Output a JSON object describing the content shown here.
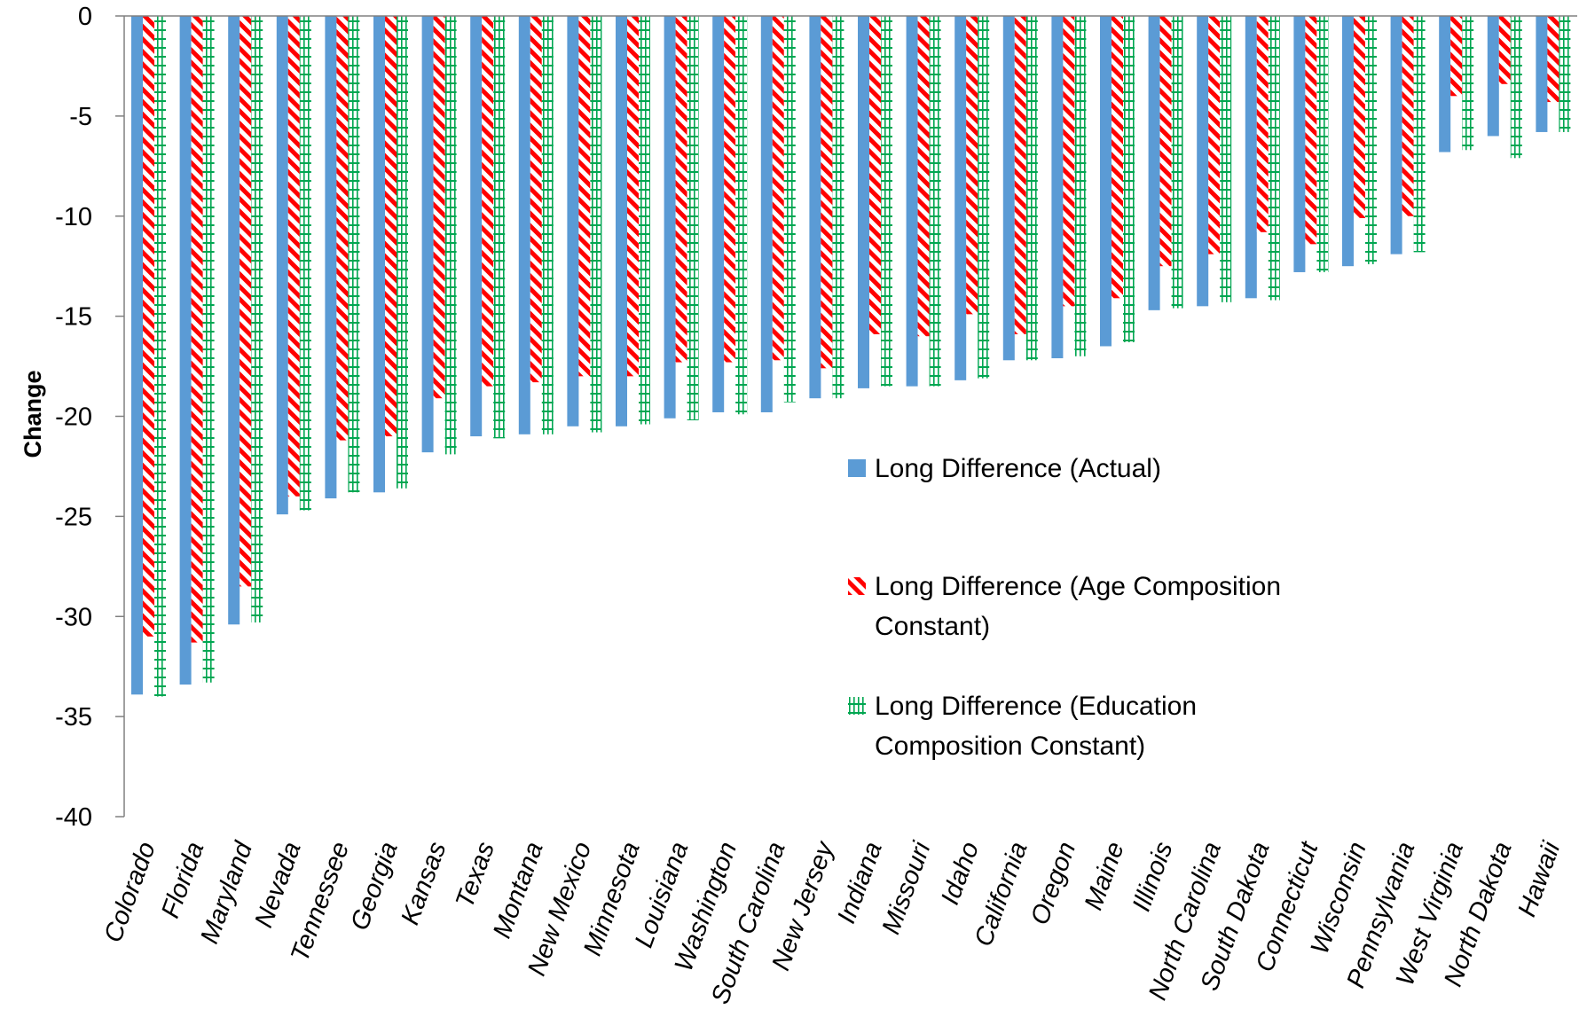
{
  "chart_data": {
    "type": "bar",
    "title": "",
    "xlabel": "",
    "ylabel": "Change",
    "ylim": [
      -40,
      0
    ],
    "yticks": [
      0,
      -5,
      -10,
      -15,
      -20,
      -25,
      -30,
      -35,
      -40
    ],
    "grid": false,
    "legend_position": "center-right",
    "categories": [
      "Colorado",
      "Florida",
      "Maryland",
      "Nevada",
      "Tennessee",
      "Georgia",
      "Kansas",
      "Texas",
      "Montana",
      "New Mexico",
      "Minnesota",
      "Louisiana",
      "Washington",
      "South Carolina",
      "New Jersey",
      "Indiana",
      "Missouri",
      "Idaho",
      "California",
      "Oregon",
      "Maine",
      "Illinois",
      "North Carolina",
      "South Dakota",
      "Connecticut",
      "Wisconsin",
      "Pennsylvania",
      "West Virginia",
      "North Dakota",
      "Hawaii"
    ],
    "series": [
      {
        "name": "Long Difference (Actual)",
        "color": "#5b9bd5",
        "pattern": "solid",
        "values": [
          -33.9,
          -33.4,
          -30.4,
          -24.9,
          -24.1,
          -23.8,
          -21.8,
          -21.0,
          -20.9,
          -20.5,
          -20.5,
          -20.1,
          -19.8,
          -19.8,
          -19.1,
          -18.6,
          -18.5,
          -18.2,
          -17.2,
          -17.1,
          -16.5,
          -14.7,
          -14.5,
          -14.1,
          -12.8,
          -12.5,
          -11.9,
          -6.8,
          -6.0,
          -5.8
        ]
      },
      {
        "name": "Long Difference (Age Composition Constant)",
        "color": "#ff0000",
        "pattern": "diagonal-stripes",
        "values": [
          -31.0,
          -31.3,
          -28.5,
          -24.0,
          -21.2,
          -21.0,
          -19.1,
          -18.5,
          -18.3,
          -18.0,
          -18.0,
          -17.3,
          -17.3,
          -17.2,
          -17.6,
          -15.9,
          -16.0,
          -14.9,
          -15.9,
          -14.5,
          -14.1,
          -12.5,
          -11.9,
          -10.8,
          -11.4,
          -10.1,
          -10.0,
          -4.0,
          -3.4,
          -4.3
        ]
      },
      {
        "name": "Long Difference (Education Composition Constant)",
        "color": "#00a651",
        "pattern": "cross-hatch",
        "values": [
          -34.0,
          -33.3,
          -30.3,
          -24.7,
          -23.8,
          -23.6,
          -21.9,
          -21.1,
          -20.9,
          -20.8,
          -20.4,
          -20.2,
          -19.9,
          -19.3,
          -19.1,
          -18.5,
          -18.5,
          -18.1,
          -17.2,
          -17.0,
          -16.3,
          -14.6,
          -14.3,
          -14.2,
          -12.8,
          -12.4,
          -11.8,
          -6.7,
          -7.1,
          -5.8
        ]
      }
    ]
  }
}
